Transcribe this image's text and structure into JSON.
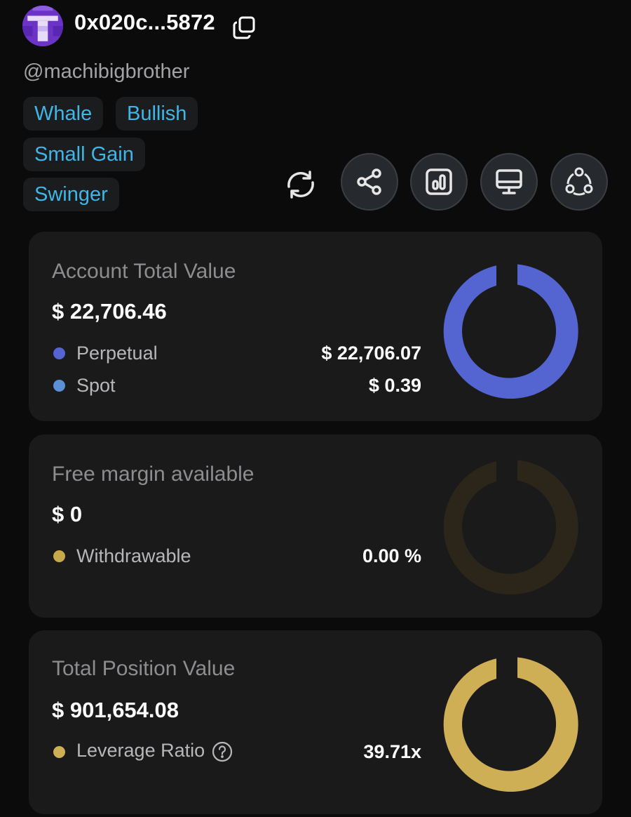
{
  "profile": {
    "address": "0x020c...5872",
    "handle": "@machibigbrother",
    "tags": [
      "Whale",
      "Bullish",
      "Small Gain",
      "Swinger"
    ]
  },
  "icons": {
    "copy": "copy-icon",
    "refresh": "refresh-icon",
    "share": "share-icon",
    "chart": "bar-chart-icon",
    "monitor": "monitor-icon",
    "network": "network-icon",
    "help": "question-circle-icon"
  },
  "colors": {
    "background": "#0b0b0c",
    "card": "#1a1a1b",
    "tag_text": "#3fb6e6",
    "perpetual": "#5465d1",
    "spot": "#5b8fd6",
    "withdrawable": "#c8a94a",
    "withdrawable_ring": "#2b2619",
    "leverage": "#cfaf55"
  },
  "account": {
    "title": "Account Total Value",
    "total": "$ 22,706.46",
    "rows": [
      {
        "label": "Perpetual",
        "value": "$ 22,706.07"
      },
      {
        "label": "Spot",
        "value": "$ 0.39"
      }
    ],
    "ring_fraction": 0.99998
  },
  "margin": {
    "title": "Free margin available",
    "total": "$ 0",
    "rows": [
      {
        "label": "Withdrawable",
        "value": "0.00 %"
      }
    ],
    "ring_fraction": 0
  },
  "position": {
    "title": "Total Position Value",
    "total": "$ 901,654.08",
    "rows": [
      {
        "label": "Leverage Ratio",
        "value": "39.71x"
      }
    ],
    "ring_fraction": 1
  }
}
